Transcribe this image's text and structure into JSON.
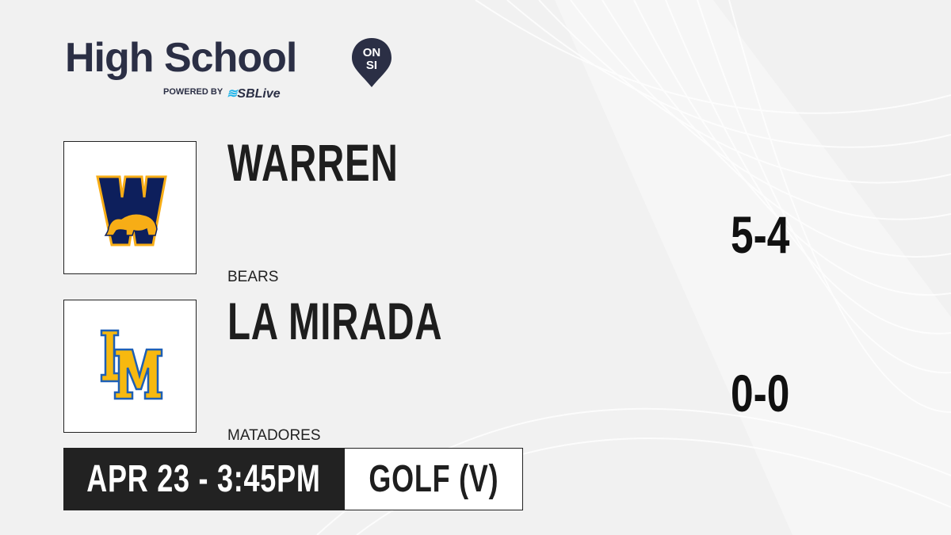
{
  "brand": {
    "title": "High School",
    "pin_text_top": "ON",
    "pin_text_bottom": "SI",
    "powered_by": "POWERED BY",
    "sbl": "SBLive"
  },
  "teams": [
    {
      "name": "WARREN",
      "mascot": "BEARS",
      "score": "5-4",
      "logo_letters": "W",
      "colors": {
        "primary": "#0d1f5c",
        "secondary": "#f7ad16"
      }
    },
    {
      "name": "LA MIRADA",
      "mascot": "MATADORES",
      "score": "0-0",
      "logo_letters": "LM",
      "colors": {
        "primary": "#f7b90f",
        "secondary": "#1d5fb5"
      }
    }
  ],
  "game": {
    "datetime": "APR 23 - 3:45PM",
    "sport": "GOLF (V)"
  },
  "colors": {
    "brand": "#2b2f45",
    "accent": "#1fb4ea",
    "dark": "#222222"
  }
}
